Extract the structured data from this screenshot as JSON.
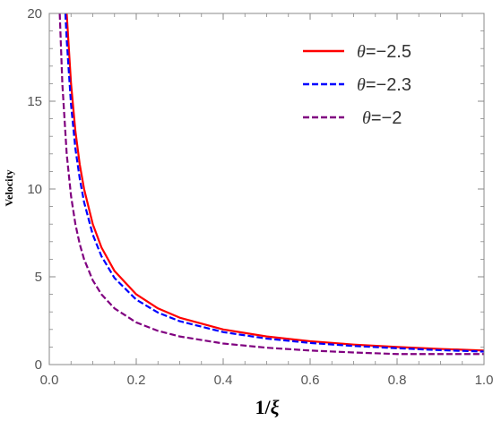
{
  "chart_data": {
    "type": "line",
    "title": "",
    "xlabel": "1/ξ",
    "ylabel": "Velocity",
    "xlim": [
      0.0,
      1.0
    ],
    "ylim": [
      0,
      20
    ],
    "xticks": [
      0.0,
      0.2,
      0.4,
      0.6,
      0.8,
      1.0
    ],
    "xtick_labels": [
      "0.0",
      "0.2",
      "0.4",
      "0.6",
      "0.8",
      "1.0"
    ],
    "yticks": [
      0,
      5,
      10,
      15,
      20
    ],
    "ytick_labels": [
      "0",
      "5",
      "10",
      "15",
      "20"
    ],
    "grid": false,
    "legend_position": "top-right",
    "series": [
      {
        "name": "θ=−2.5",
        "color": "#ff0000",
        "style": "solid",
        "x": [
          0.04,
          0.05,
          0.06,
          0.07,
          0.08,
          0.1,
          0.12,
          0.15,
          0.2,
          0.25,
          0.3,
          0.4,
          0.5,
          0.6,
          0.7,
          0.8,
          0.9,
          1.0
        ],
        "y": [
          20.0,
          16.0,
          13.3,
          11.4,
          10.0,
          8.0,
          6.67,
          5.33,
          4.0,
          3.2,
          2.67,
          2.0,
          1.6,
          1.33,
          1.14,
          1.0,
          0.89,
          0.8
        ]
      },
      {
        "name": "θ=−2.3",
        "color": "#0000ff",
        "style": "dashed",
        "x": [
          0.037,
          0.04,
          0.05,
          0.06,
          0.07,
          0.08,
          0.1,
          0.12,
          0.15,
          0.2,
          0.25,
          0.3,
          0.4,
          0.5,
          0.6,
          0.7,
          0.8,
          0.9,
          1.0
        ],
        "y": [
          20.0,
          18.5,
          14.8,
          12.3,
          10.6,
          9.25,
          7.4,
          6.17,
          4.93,
          3.7,
          2.96,
          2.47,
          1.85,
          1.48,
          1.23,
          1.06,
          0.93,
          0.82,
          0.74
        ]
      },
      {
        "name": "θ=−2",
        "color": "#800080",
        "style": "dashed",
        "x": [
          0.024,
          0.03,
          0.04,
          0.05,
          0.06,
          0.07,
          0.08,
          0.1,
          0.12,
          0.15,
          0.2,
          0.25,
          0.3,
          0.4,
          0.5,
          0.6,
          0.7,
          0.8,
          0.9,
          1.0
        ],
        "y": [
          20.0,
          16.0,
          12.0,
          9.6,
          8.0,
          6.86,
          6.0,
          4.8,
          4.0,
          3.2,
          2.4,
          1.92,
          1.6,
          1.2,
          0.96,
          0.8,
          0.69,
          0.6,
          0.6,
          0.6
        ]
      }
    ]
  }
}
